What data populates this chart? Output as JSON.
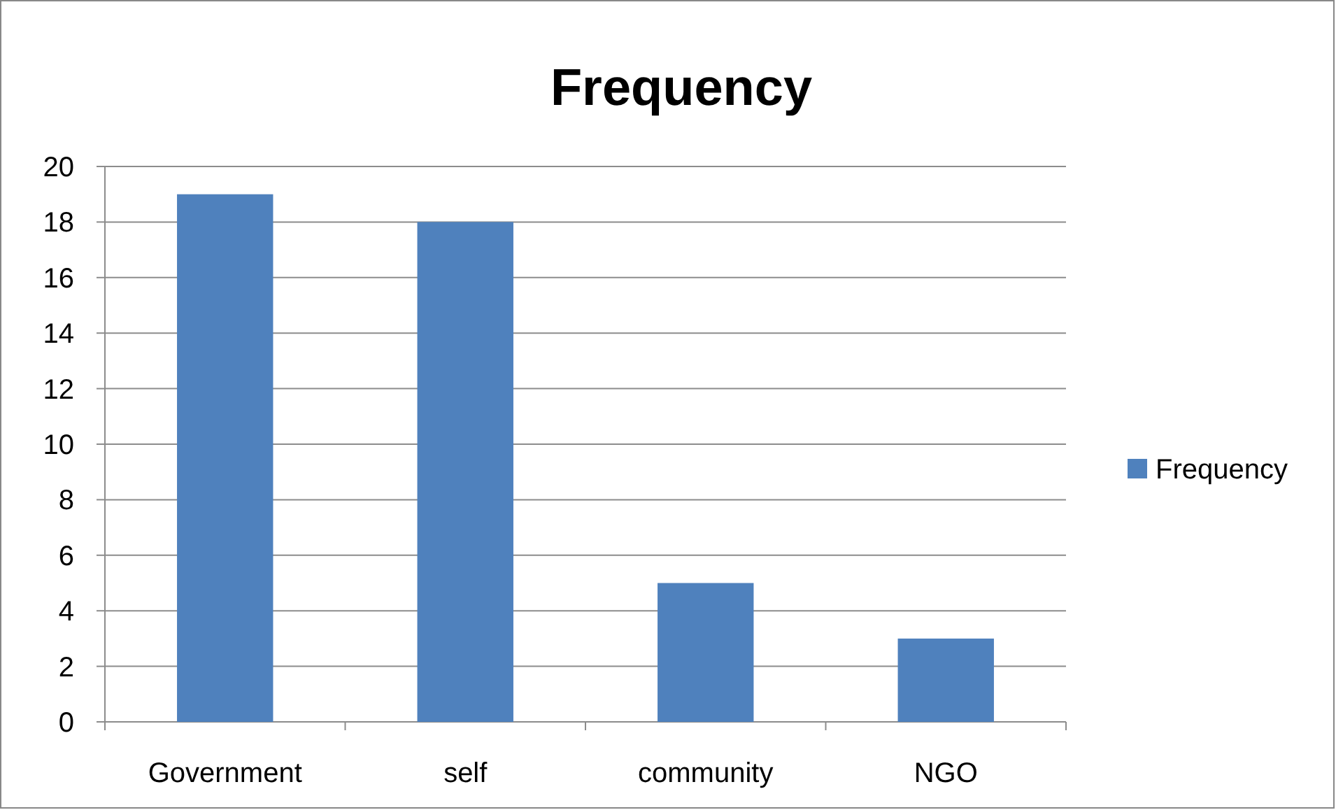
{
  "chart_data": {
    "type": "bar",
    "title": "Frequency",
    "categories": [
      "Government",
      "self",
      "community",
      "NGO"
    ],
    "series": [
      {
        "name": "Frequency",
        "color": "#4f81bd",
        "values": [
          19,
          18,
          5,
          3
        ]
      }
    ],
    "ylim": [
      0,
      20
    ],
    "yticks": [
      0,
      2,
      4,
      6,
      8,
      10,
      12,
      14,
      16,
      18,
      20
    ],
    "grid": "y",
    "legend": "right"
  }
}
